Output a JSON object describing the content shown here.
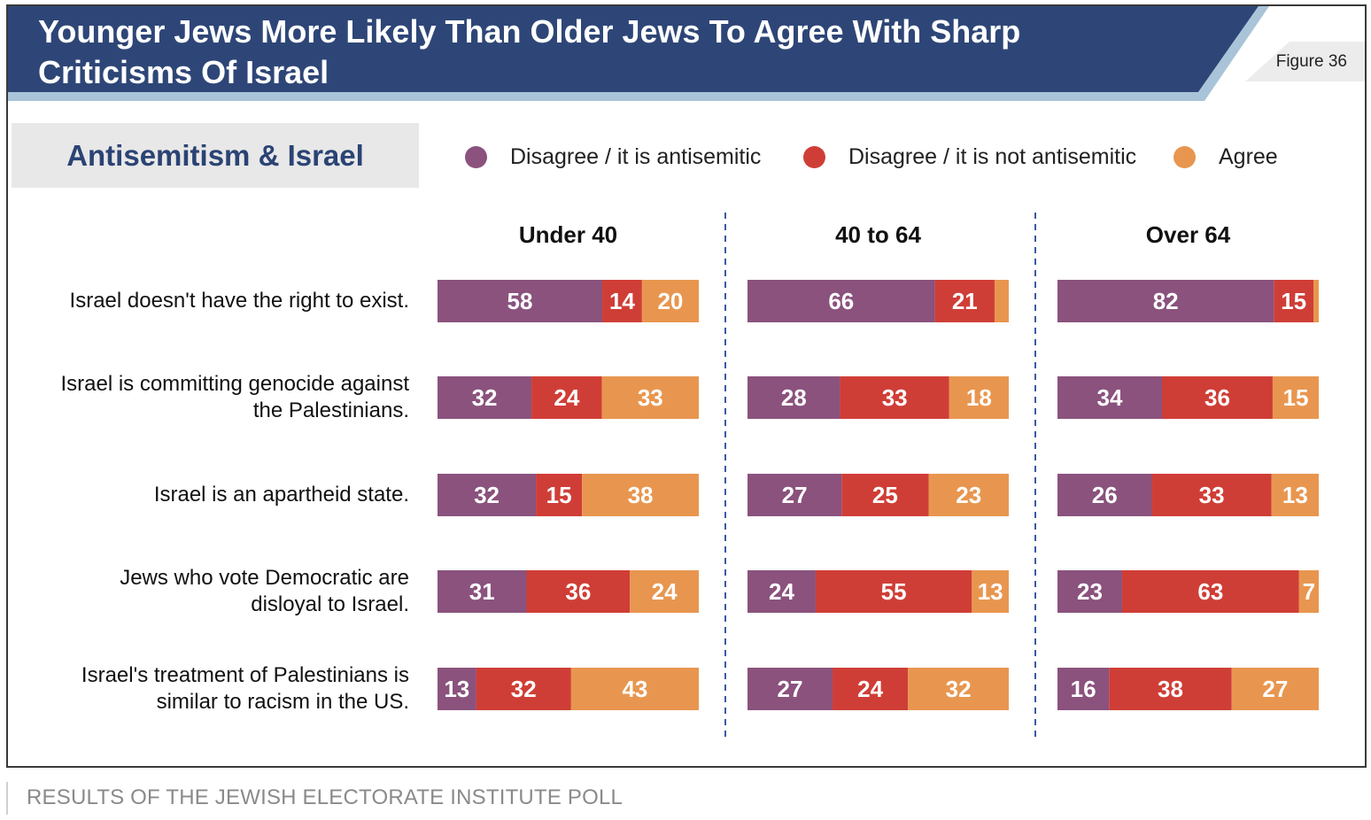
{
  "title": "Younger Jews More Likely Than Older Jews To Agree With Sharp Criticisms Of Israel",
  "figure_label": "Figure 36",
  "section": "Antisemitism & Israel",
  "caption": "RESULTS OF THE JEWISH ELECTORATE INSTITUTE POLL",
  "colors": {
    "title_bg": "#2e4677",
    "title_accent": "#a9c3d8",
    "purple": "#8a527d",
    "red": "#cf3e36",
    "orange": "#e8964f",
    "divider": "#3b5aa0"
  },
  "chart_data": {
    "type": "bar",
    "orientation": "horizontal-stacked",
    "groups": [
      "Under 40",
      "40 to 64",
      "Over 64"
    ],
    "legend": [
      {
        "name": "Disagree / it is antisemitic",
        "color": "#8a527d"
      },
      {
        "name": "Disagree / it is not antisemitic",
        "color": "#cf3e36"
      },
      {
        "name": "Agree",
        "color": "#e8964f"
      }
    ],
    "categories": [
      "Israel doesn't have the right to exist.",
      "Israel is committing genocide against the Palestinians.",
      "Israel is an apartheid state.",
      "Jews who vote Democratic are disloyal to Israel.",
      "Israel's treatment of Palestinians is similar to racism in the US."
    ],
    "category_lines": [
      [
        "Israel doesn't have the right to exist."
      ],
      [
        "Israel is committing genocide against",
        "the Palestinians."
      ],
      [
        "Israel is an apartheid state."
      ],
      [
        "Jews who vote Democratic are",
        "disloyal to Israel."
      ],
      [
        "Israel's treatment of Palestinians is",
        "similar to racism in the US."
      ]
    ],
    "values": [
      [
        [
          58,
          14,
          20
        ],
        [
          66,
          21,
          5
        ],
        [
          82,
          15,
          2
        ]
      ],
      [
        [
          32,
          24,
          33
        ],
        [
          28,
          33,
          18
        ],
        [
          34,
          36,
          15
        ]
      ],
      [
        [
          32,
          15,
          38
        ],
        [
          27,
          25,
          23
        ],
        [
          26,
          33,
          13
        ]
      ],
      [
        [
          31,
          36,
          24
        ],
        [
          24,
          55,
          13
        ],
        [
          23,
          63,
          7
        ]
      ],
      [
        [
          13,
          32,
          43
        ],
        [
          27,
          24,
          32
        ],
        [
          16,
          38,
          27
        ]
      ]
    ],
    "labels": [
      [
        [
          "58",
          "14",
          "20"
        ],
        [
          "66",
          "21",
          ""
        ],
        [
          "82",
          "15",
          ""
        ]
      ],
      [
        [
          "32",
          "24",
          "33"
        ],
        [
          "28",
          "33",
          "18"
        ],
        [
          "34",
          "36",
          "15"
        ]
      ],
      [
        [
          "32",
          "15",
          "38"
        ],
        [
          "27",
          "25",
          "23"
        ],
        [
          "26",
          "33",
          "13"
        ]
      ],
      [
        [
          "31",
          "36",
          "24"
        ],
        [
          "24",
          "55",
          "13"
        ],
        [
          "23",
          "63",
          "7"
        ]
      ],
      [
        [
          "13",
          "32",
          "43"
        ],
        [
          "27",
          "24",
          "32"
        ],
        [
          "16",
          "38",
          "27"
        ]
      ]
    ]
  }
}
